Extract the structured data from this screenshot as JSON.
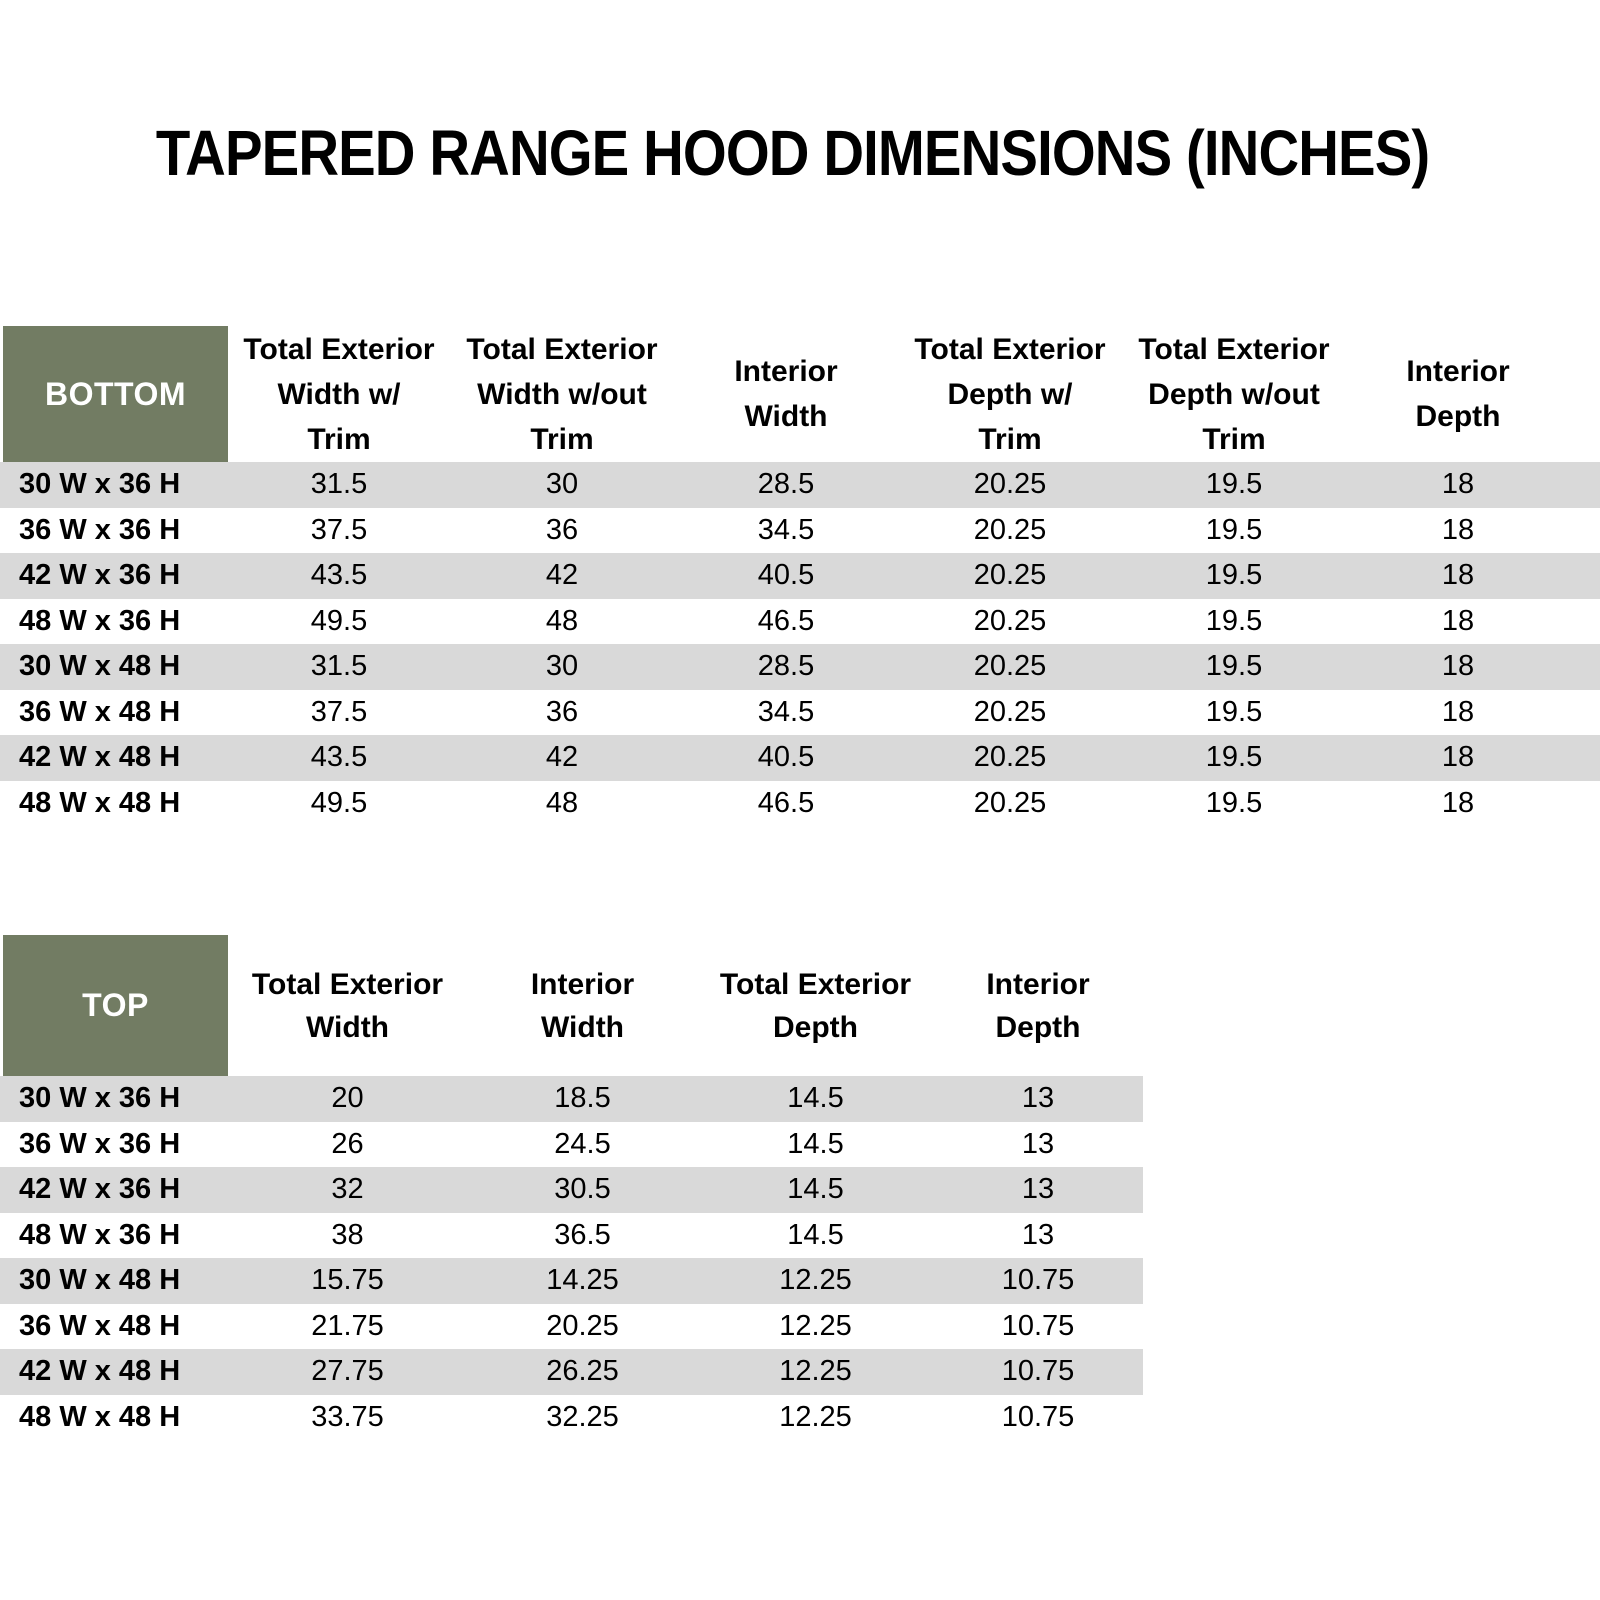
{
  "page_title": "TAPERED RANGE HOOD DIMENSIONS (INCHES)",
  "colors": {
    "header_green": "#727C63",
    "row_band_gray": "#D9D9D9",
    "text_black": "#000000",
    "corner_text_white": "#FFFFFF"
  },
  "bottom_table": {
    "corner_label": "BOTTOM",
    "column_headers": [
      {
        "lines": [
          "Total Exterior",
          "Width w/",
          "Trim"
        ]
      },
      {
        "lines": [
          "Total Exterior",
          "Width w/out",
          "Trim"
        ]
      },
      {
        "lines": [
          "Interior",
          "Width"
        ]
      },
      {
        "lines": [
          "Total Exterior",
          "Depth w/",
          "Trim"
        ]
      },
      {
        "lines": [
          "Total Exterior",
          "Depth w/out",
          "Trim"
        ]
      },
      {
        "lines": [
          "Interior",
          "Depth"
        ]
      }
    ],
    "rows": [
      {
        "label": "30 W x 36 H",
        "values": [
          "31.5",
          "30",
          "28.5",
          "20.25",
          "19.5",
          "18"
        ]
      },
      {
        "label": "36 W x 36 H",
        "values": [
          "37.5",
          "36",
          "34.5",
          "20.25",
          "19.5",
          "18"
        ]
      },
      {
        "label": "42 W x 36 H",
        "values": [
          "43.5",
          "42",
          "40.5",
          "20.25",
          "19.5",
          "18"
        ]
      },
      {
        "label": "48 W x 36 H",
        "values": [
          "49.5",
          "48",
          "46.5",
          "20.25",
          "19.5",
          "18"
        ]
      },
      {
        "label": "30 W x 48 H",
        "values": [
          "31.5",
          "30",
          "28.5",
          "20.25",
          "19.5",
          "18"
        ]
      },
      {
        "label": "36 W x 48 H",
        "values": [
          "37.5",
          "36",
          "34.5",
          "20.25",
          "19.5",
          "18"
        ]
      },
      {
        "label": "42 W x 48 H",
        "values": [
          "43.5",
          "42",
          "40.5",
          "20.25",
          "19.5",
          "18"
        ]
      },
      {
        "label": "48 W x 48 H",
        "values": [
          "49.5",
          "48",
          "46.5",
          "20.25",
          "19.5",
          "18"
        ]
      }
    ]
  },
  "top_table": {
    "corner_label": "TOP",
    "column_headers": [
      {
        "lines": [
          "Total Exterior",
          "Width"
        ]
      },
      {
        "lines": [
          "Interior",
          "Width"
        ]
      },
      {
        "lines": [
          "Total Exterior",
          "Depth"
        ]
      },
      {
        "lines": [
          "Interior",
          "Depth"
        ]
      }
    ],
    "rows": [
      {
        "label": "30 W x 36 H",
        "values": [
          "20",
          "18.5",
          "14.5",
          "13"
        ]
      },
      {
        "label": "36 W x 36 H",
        "values": [
          "26",
          "24.5",
          "14.5",
          "13"
        ]
      },
      {
        "label": "42 W x 36 H",
        "values": [
          "32",
          "30.5",
          "14.5",
          "13"
        ]
      },
      {
        "label": "48 W x 36 H",
        "values": [
          "38",
          "36.5",
          "14.5",
          "13"
        ]
      },
      {
        "label": "30 W x 48 H",
        "values": [
          "15.75",
          "14.25",
          "12.25",
          "10.75"
        ]
      },
      {
        "label": "36 W x 48 H",
        "values": [
          "21.75",
          "20.25",
          "12.25",
          "10.75"
        ]
      },
      {
        "label": "42 W x 48 H",
        "values": [
          "27.75",
          "26.25",
          "12.25",
          "10.75"
        ]
      },
      {
        "label": "48 W x 48 H",
        "values": [
          "33.75",
          "32.25",
          "12.25",
          "10.75"
        ]
      }
    ]
  }
}
